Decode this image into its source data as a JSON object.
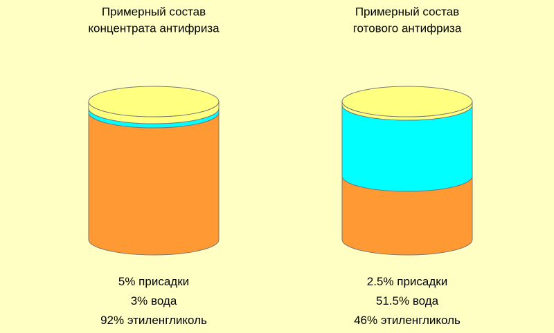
{
  "chart_data": [
    {
      "type": "cylinder",
      "title": [
        "Примерный состав",
        "концентрата антифриза"
      ],
      "series": [
        {
          "name": "присадки",
          "color": "#ffff80",
          "values": [
            5
          ],
          "value_labels": [
            "5%"
          ]
        },
        {
          "name": "вода",
          "color": "#00ffff",
          "values": [
            3
          ],
          "value_labels": [
            "3%"
          ]
        },
        {
          "name": "этиленгликоль",
          "color": "#ff9933",
          "values": [
            92
          ],
          "value_labels": [
            "92%"
          ]
        }
      ]
    },
    {
      "type": "cylinder",
      "title": [
        "Примерный состав",
        "готового антифриза"
      ],
      "series": [
        {
          "name": "присадки",
          "color": "#ffff80",
          "values": [
            2.5
          ],
          "value_labels": [
            "2.5%"
          ]
        },
        {
          "name": "вода",
          "color": "#00ffff",
          "values": [
            51.5
          ],
          "value_labels": [
            "51.5%"
          ]
        },
        {
          "name": "этиленгликоль",
          "color": "#ff9933",
          "values": [
            46
          ],
          "value_labels": [
            "46%"
          ]
        }
      ]
    }
  ]
}
